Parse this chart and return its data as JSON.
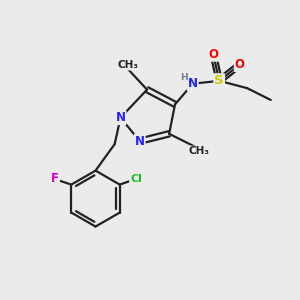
{
  "bg_color": "#ebebeb",
  "bond_color": "#222222",
  "bond_width": 1.6,
  "atom_colors": {
    "N": "#2222ff",
    "H": "#708090",
    "S": "#cccc00",
    "O": "#ff0000",
    "F": "#cc00cc",
    "Cl": "#22bb22",
    "C": "#222222"
  },
  "font_size_atom": 8.5,
  "font_size_small": 7.0,
  "font_size_methyl": 7.5
}
